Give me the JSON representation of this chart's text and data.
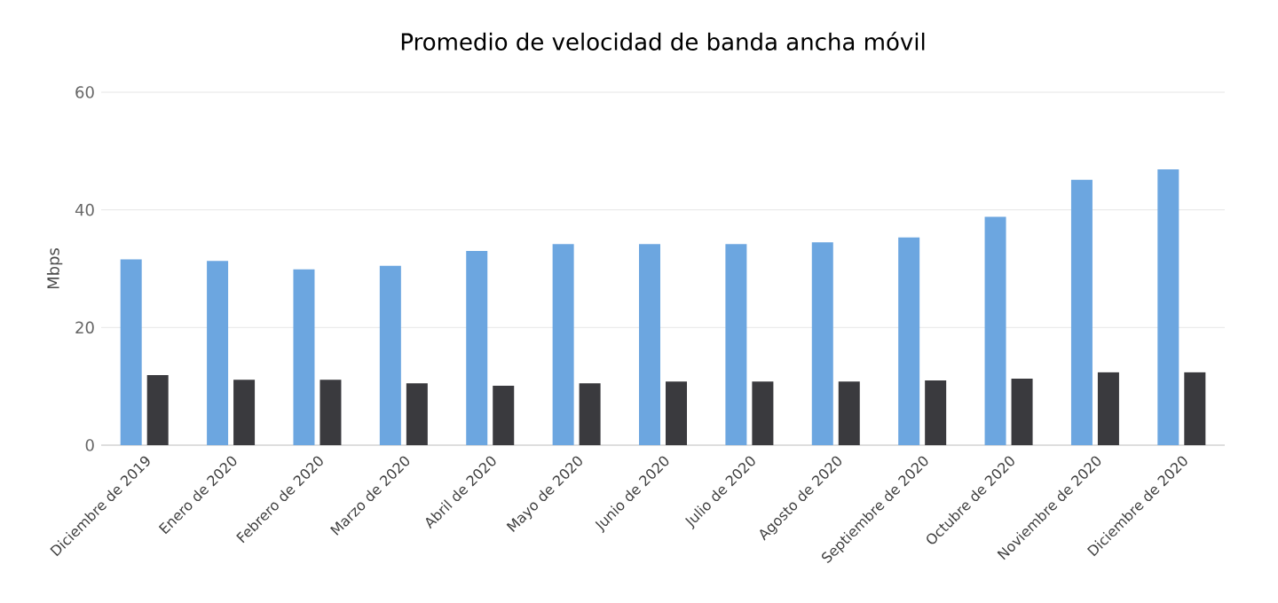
{
  "chart_data": {
    "type": "bar",
    "title": "Promedio de velocidad de banda ancha móvil",
    "ylabel": "Mbps",
    "categories": [
      "Diciembre de 2019",
      "Enero de 2020",
      "Febrero de 2020",
      "Marzo de 2020",
      "Abril de 2020",
      "Mayo de 2020",
      "Junio de 2020",
      "Julio de 2020",
      "Agosto de 2020",
      "Septiembre de 2020",
      "Octubre de 2020",
      "Noviembre de 2020",
      "Diciembre de 2020"
    ],
    "series": [
      {
        "color": "#6ca6e0",
        "values": [
          31.6,
          31.3,
          29.9,
          30.5,
          33.0,
          34.2,
          34.2,
          34.2,
          34.5,
          35.3,
          38.8,
          45.1,
          46.9
        ]
      },
      {
        "color": "#3a3a3e",
        "values": [
          11.9,
          11.1,
          11.1,
          10.5,
          10.1,
          10.5,
          10.8,
          10.8,
          10.8,
          11.0,
          11.3,
          12.4,
          12.4
        ]
      }
    ],
    "ylim": [
      0,
      60
    ],
    "yticks": [
      0,
      20,
      40,
      60
    ],
    "grid": "y"
  }
}
